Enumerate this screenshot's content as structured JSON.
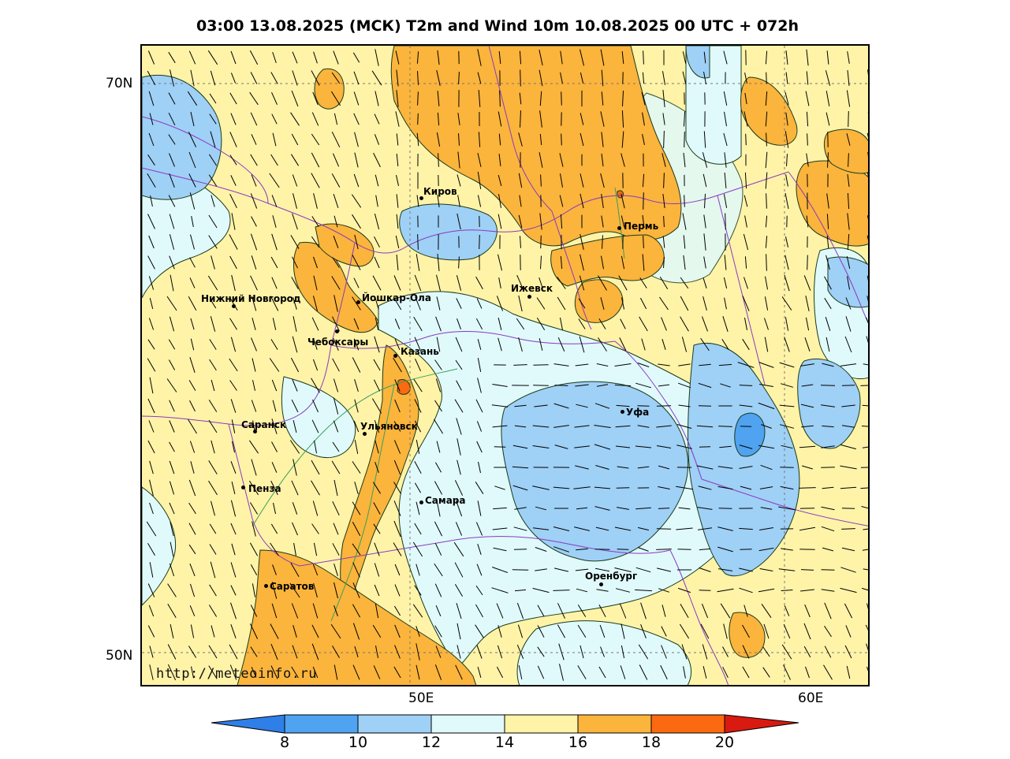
{
  "title": "03:00 13.08.2025 (МСК) T2m and Wind 10m 10.08.2025 00 UTC + 072h",
  "watermark": "http://meteoinfo.ru",
  "axes": {
    "lat_labels": [
      "70N",
      "50N"
    ],
    "lon_labels": [
      "50E",
      "60E"
    ]
  },
  "cities": [
    {
      "name": "Киров"
    },
    {
      "name": "Пермь"
    },
    {
      "name": "Нижний Новгород"
    },
    {
      "name": "Йошкар-Ола"
    },
    {
      "name": "Ижевск"
    },
    {
      "name": "Чебоксары"
    },
    {
      "name": "Казань"
    },
    {
      "name": "Уфа"
    },
    {
      "name": "Саранск"
    },
    {
      "name": "Ульяновск"
    },
    {
      "name": "Пенза"
    },
    {
      "name": "Самара"
    },
    {
      "name": "Оренбург"
    },
    {
      "name": "Саратов"
    }
  ],
  "legend": {
    "ticks": [
      "8",
      "10",
      "12",
      "14",
      "16",
      "18",
      "20"
    ],
    "colors": {
      "below_8": "#2f7fe8",
      "8_10": "#4fa3f0",
      "10_12": "#9fd0f6",
      "12_14": "#e0fafb",
      "14_16": "#fff3a8",
      "16_18": "#fbb43c",
      "18_20": "#fb6a10",
      "above_20": "#d81a10"
    }
  }
}
